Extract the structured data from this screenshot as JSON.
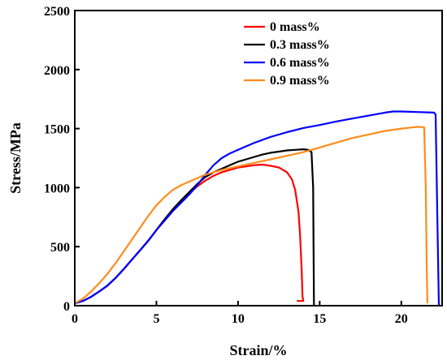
{
  "chart_data": {
    "type": "line",
    "xlabel": "Strain/%",
    "ylabel": "Stress/MPa",
    "xlim": [
      0,
      22.5
    ],
    "ylim": [
      0,
      2500
    ],
    "x_ticks": [
      0,
      5,
      10,
      15,
      20
    ],
    "y_ticks": [
      0,
      500,
      1000,
      1500,
      2000,
      2500
    ],
    "grid": false,
    "legend_position": "top-right",
    "series": [
      {
        "name": "0 mass%",
        "color": "#ff0000",
        "x": [
          0,
          0.5,
          1,
          1.5,
          2,
          2.5,
          3,
          3.5,
          4,
          4.5,
          5,
          5.5,
          6,
          6.5,
          7,
          7.5,
          8,
          8.5,
          9,
          9.5,
          10,
          10.5,
          11,
          11.5,
          12,
          12.5,
          13,
          13.3,
          13.5,
          13.7,
          13.8,
          13.9,
          13.95,
          14.0,
          13.6
        ],
        "y": [
          20,
          40,
          75,
          120,
          170,
          235,
          310,
          390,
          470,
          550,
          640,
          730,
          815,
          890,
          950,
          1010,
          1060,
          1100,
          1130,
          1150,
          1170,
          1180,
          1190,
          1195,
          1185,
          1170,
          1130,
          1070,
          980,
          800,
          600,
          300,
          80,
          40,
          40
        ]
      },
      {
        "name": "0.3 mass%",
        "color": "#000000",
        "x": [
          0,
          0.5,
          1,
          1.5,
          2,
          2.5,
          3,
          3.5,
          4,
          4.5,
          5,
          5.5,
          6,
          6.5,
          7,
          7.5,
          8,
          8.5,
          9,
          9.5,
          10,
          10.5,
          11,
          11.5,
          12,
          12.5,
          13,
          13.5,
          14,
          14.3,
          14.5,
          14.6,
          14.65
        ],
        "y": [
          20,
          40,
          75,
          120,
          170,
          235,
          310,
          390,
          470,
          550,
          640,
          730,
          815,
          890,
          960,
          1030,
          1090,
          1130,
          1160,
          1190,
          1220,
          1240,
          1260,
          1280,
          1295,
          1305,
          1315,
          1320,
          1325,
          1320,
          1300,
          1000,
          0
        ]
      },
      {
        "name": "0.6 mass%",
        "color": "#0000ff",
        "x": [
          0,
          0.5,
          1,
          1.5,
          2,
          2.5,
          3,
          3.5,
          4,
          4.5,
          5,
          5.5,
          6,
          6.5,
          7,
          7.5,
          8,
          8.5,
          9,
          9.5,
          10,
          11,
          12,
          13,
          14,
          15,
          16,
          17,
          18,
          19,
          19.5,
          20,
          21,
          22,
          22.1,
          22.2,
          22.3
        ],
        "y": [
          20,
          40,
          75,
          120,
          170,
          235,
          310,
          390,
          470,
          550,
          640,
          720,
          800,
          870,
          940,
          1020,
          1110,
          1190,
          1250,
          1290,
          1320,
          1380,
          1430,
          1470,
          1505,
          1530,
          1560,
          1585,
          1610,
          1635,
          1645,
          1645,
          1640,
          1635,
          1620,
          800,
          0
        ]
      },
      {
        "name": "0.9 mass%",
        "color": "#ff8c1a",
        "x": [
          0,
          0.5,
          1,
          1.5,
          2,
          2.5,
          3,
          3.5,
          4,
          4.5,
          5,
          5.5,
          6,
          6.5,
          7,
          7.5,
          8,
          9,
          10,
          11,
          12,
          13,
          14,
          15,
          16,
          17,
          18,
          19,
          20,
          21,
          21.4,
          21.5,
          21.55,
          21.6
        ],
        "y": [
          20,
          60,
          120,
          190,
          270,
          360,
          460,
          560,
          660,
          760,
          850,
          920,
          980,
          1020,
          1050,
          1080,
          1110,
          1150,
          1180,
          1210,
          1240,
          1270,
          1300,
          1340,
          1380,
          1420,
          1450,
          1480,
          1500,
          1515,
          1510,
          1000,
          400,
          20
        ]
      }
    ]
  }
}
